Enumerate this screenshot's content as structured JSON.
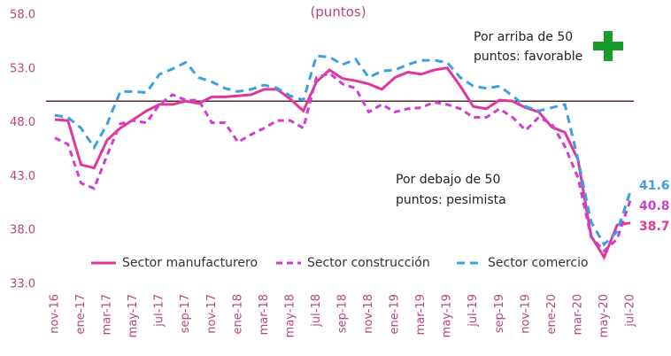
{
  "chart_data": {
    "type": "line",
    "title": "(puntos)",
    "categories": [
      "nov-16",
      null,
      "ene-17",
      null,
      "mar-17",
      null,
      "may-17",
      null,
      "jul-17",
      null,
      "sep-17",
      null,
      "nov-17",
      null,
      "ene-18",
      null,
      "mar-18",
      null,
      "may-18",
      null,
      "jul-18",
      null,
      "sep-18",
      null,
      "nov-18",
      null,
      "ene-19",
      null,
      "mar-19",
      null,
      "may-19",
      null,
      "jul-19",
      null,
      "sep-19",
      null,
      "nov-19",
      null,
      "ene-20",
      null,
      "mar-20",
      null,
      "may-20",
      null,
      "jul-20"
    ],
    "series": [
      {
        "name": "Sector manufacturero",
        "color": "#e2379a",
        "dash": "none",
        "values": [
          48.3,
          48.2,
          44.1,
          43.8,
          46.4,
          47.5,
          48.3,
          49.1,
          49.7,
          49.7,
          50.0,
          49.8,
          50.4,
          50.4,
          50.5,
          50.6,
          51.1,
          51.1,
          50.2,
          49.1,
          51.8,
          52.9,
          52.1,
          51.9,
          51.6,
          51.1,
          52.2,
          52.7,
          52.5,
          52.9,
          53.1,
          51.4,
          49.5,
          49.3,
          50.1,
          50.0,
          49.4,
          49.0,
          47.6,
          47.1,
          44.6,
          37.5,
          35.5,
          38.5,
          38.7
        ]
      },
      {
        "name": "Sector construcción",
        "color": "#cc3fcf",
        "dash": "7 5",
        "values": [
          46.6,
          46.0,
          42.4,
          41.9,
          45.0,
          47.9,
          48.2,
          48.0,
          49.7,
          50.6,
          50.1,
          50.1,
          48.0,
          48.0,
          46.2,
          46.9,
          47.5,
          48.2,
          48.2,
          47.5,
          52.2,
          52.6,
          51.6,
          51.2,
          49.0,
          49.7,
          49.0,
          49.3,
          49.4,
          49.9,
          49.7,
          49.3,
          48.5,
          48.5,
          49.3,
          48.5,
          47.3,
          48.5,
          47.9,
          45.8,
          42.9,
          37.4,
          36.1,
          37.2,
          40.8
        ]
      },
      {
        "name": "Sector comercio",
        "color": "#3d9fe0",
        "dash": "9 6",
        "values": [
          48.7,
          48.5,
          47.5,
          45.7,
          47.9,
          50.9,
          50.9,
          50.8,
          52.5,
          53.0,
          53.6,
          52.2,
          51.8,
          51.2,
          50.9,
          51.1,
          51.5,
          51.2,
          50.5,
          50.1,
          54.2,
          54.1,
          53.4,
          53.9,
          52.2,
          52.8,
          52.9,
          53.4,
          53.8,
          53.8,
          53.6,
          52.2,
          51.4,
          51.2,
          51.4,
          50.5,
          49.5,
          49.1,
          49.4,
          49.7,
          44.6,
          38.8,
          36.7,
          37.9,
          41.6
        ]
      }
    ],
    "ylim": [
      33,
      58
    ],
    "yticks": [
      {
        "value": 33,
        "label": "33.0"
      },
      {
        "value": 38,
        "label": "38.0"
      },
      {
        "value": 43,
        "label": "43.0"
      },
      {
        "value": 48,
        "label": "48.0"
      },
      {
        "value": 53,
        "label": "53.0"
      },
      {
        "value": 58,
        "label": "58.0"
      }
    ],
    "reference_line": 50,
    "annotations": [
      {
        "lines": [
          "Por arriba de 50",
          "puntos: favorable"
        ]
      },
      {
        "lines": [
          "Por debajo de 50",
          "puntos: pesimista"
        ]
      }
    ]
  }
}
